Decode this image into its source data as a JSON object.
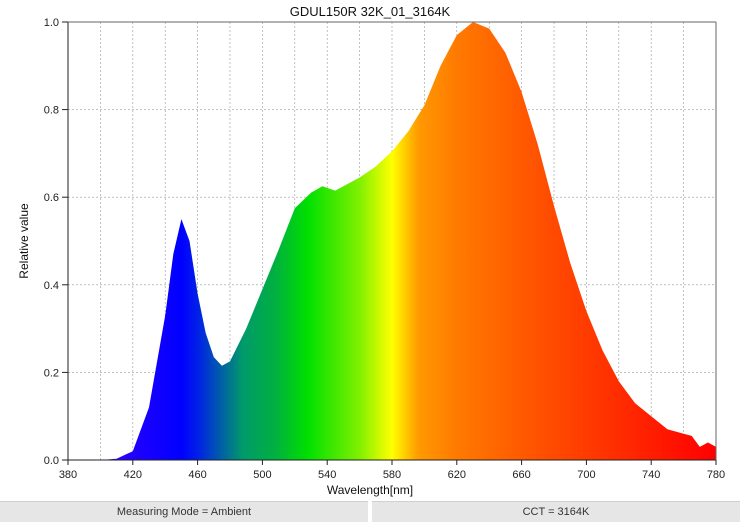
{
  "chart_data": {
    "type": "area",
    "title": "GDUL150R 32K_01_3164K",
    "xlabel": "Wavelength[nm]",
    "ylabel": "Relative value",
    "xlim": [
      380,
      780
    ],
    "ylim": [
      0,
      1.0
    ],
    "xticks": [
      380,
      420,
      460,
      500,
      540,
      580,
      620,
      660,
      700,
      740,
      780
    ],
    "yticks": [
      "0.0",
      "0.2",
      "0.4",
      "0.6",
      "0.8",
      "1.0"
    ],
    "grid": true,
    "fill": "visible-spectrum color gradient",
    "x": [
      400,
      410,
      420,
      430,
      440,
      445,
      450,
      455,
      460,
      465,
      470,
      475,
      480,
      490,
      500,
      510,
      520,
      530,
      537,
      545,
      550,
      560,
      570,
      580,
      590,
      600,
      610,
      620,
      630,
      640,
      650,
      660,
      670,
      680,
      690,
      700,
      710,
      720,
      730,
      740,
      750,
      760,
      765,
      770,
      775,
      780
    ],
    "y": [
      0,
      0.003,
      0.02,
      0.12,
      0.33,
      0.47,
      0.55,
      0.5,
      0.38,
      0.29,
      0.235,
      0.215,
      0.225,
      0.3,
      0.39,
      0.48,
      0.575,
      0.61,
      0.625,
      0.615,
      0.625,
      0.645,
      0.67,
      0.705,
      0.75,
      0.81,
      0.9,
      0.97,
      1.0,
      0.985,
      0.93,
      0.84,
      0.72,
      0.58,
      0.45,
      0.34,
      0.25,
      0.18,
      0.13,
      0.1,
      0.07,
      0.06,
      0.055,
      0.03,
      0.04,
      0.03
    ]
  },
  "footer": {
    "measuring_mode": "Measuring Mode = Ambient",
    "cct": "CCT = 3164K"
  }
}
